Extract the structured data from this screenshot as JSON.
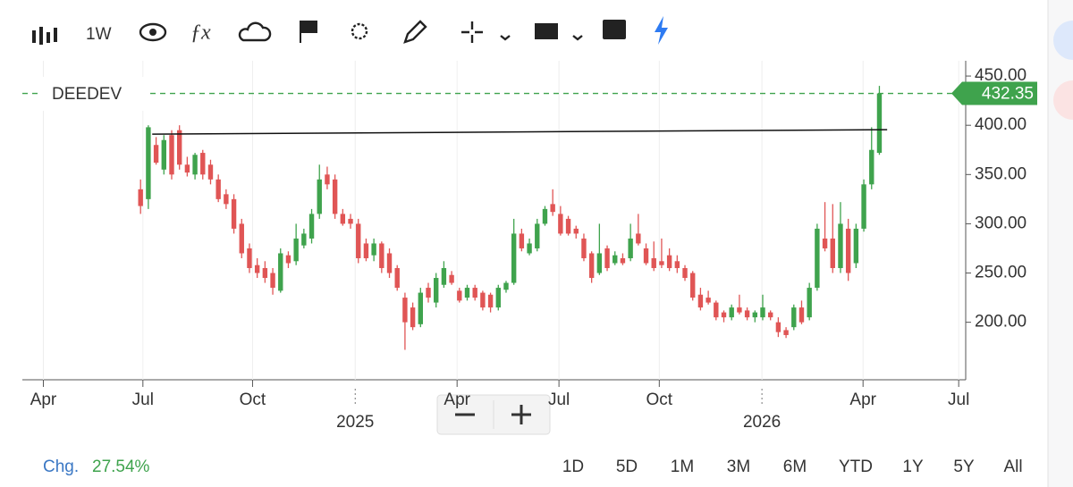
{
  "toolbar": {
    "interval": "1W"
  },
  "change": {
    "label": "Chg.",
    "value": "27.54%"
  },
  "ranges": [
    "1D",
    "5D",
    "1M",
    "3M",
    "6M",
    "YTD",
    "1Y",
    "5Y",
    "All"
  ],
  "chart_data": {
    "type": "candlestick",
    "up_color": "#3fa34d",
    "down_color": "#e05555",
    "x": [
      0,
      1,
      2,
      3,
      4,
      5,
      6,
      7,
      8,
      9,
      10,
      11,
      12,
      13,
      14,
      15,
      16,
      17,
      18,
      19,
      20,
      21,
      22,
      23,
      24,
      25,
      26,
      27,
      28,
      29,
      30,
      31,
      32,
      33,
      34,
      35,
      36,
      37,
      38,
      39,
      40,
      41,
      42,
      43,
      44,
      45,
      46,
      47,
      48,
      49,
      50,
      51,
      52,
      53,
      54,
      55,
      56,
      57,
      58,
      59,
      60,
      61,
      62,
      63,
      64,
      65,
      66,
      67,
      68,
      69,
      70,
      71,
      72,
      73,
      74,
      75,
      76,
      77,
      78,
      79,
      80,
      81,
      82,
      83,
      84,
      85,
      86,
      87,
      88,
      89,
      90,
      91,
      92,
      93,
      94,
      95
    ],
    "series": [
      {
        "name": "DEEDEV",
        "open": [
          335,
          325,
          380,
          355,
          390,
          395,
          360,
          350,
          372,
          360,
          345,
          330,
          325,
          300,
          275,
          258,
          255,
          250,
          232,
          268,
          262,
          278,
          285,
          310,
          350,
          345,
          310,
          305,
          300,
          280,
          268,
          280,
          270,
          255,
          225,
          215,
          198,
          235,
          220,
          238,
          248,
          232,
          225,
          235,
          230,
          228,
          215,
          233,
          240,
          290,
          270,
          275,
          300,
          320,
          310,
          305,
          295,
          285,
          270,
          250,
          275,
          260,
          265,
          265,
          290,
          275,
          265,
          262,
          268,
          262,
          255,
          250,
          228,
          225,
          220,
          210,
          205,
          215,
          212,
          205,
          205,
          210,
          200,
          192,
          195,
          215,
          205,
          235,
          285,
          285,
          255,
          295,
          260,
          295,
          340,
          372
        ],
        "high": [
          345,
          400,
          388,
          390,
          395,
          400,
          368,
          372,
          375,
          365,
          350,
          335,
          330,
          305,
          280,
          265,
          262,
          255,
          275,
          272,
          300,
          295,
          315,
          360,
          358,
          350,
          315,
          310,
          305,
          285,
          285,
          282,
          275,
          258,
          230,
          220,
          235,
          240,
          250,
          262,
          252,
          235,
          238,
          238,
          232,
          230,
          238,
          242,
          305,
          295,
          285,
          305,
          318,
          335,
          318,
          308,
          298,
          290,
          272,
          300,
          278,
          272,
          270,
          300,
          310,
          280,
          282,
          285,
          275,
          268,
          258,
          252,
          235,
          232,
          222,
          212,
          218,
          228,
          215,
          212,
          228,
          212,
          205,
          195,
          218,
          222,
          240,
          300,
          322,
          320,
          322,
          305,
          300,
          345,
          398,
          440
        ],
        "low": [
          310,
          315,
          360,
          350,
          345,
          355,
          348,
          345,
          345,
          340,
          322,
          315,
          290,
          265,
          250,
          245,
          240,
          228,
          230,
          255,
          258,
          275,
          280,
          305,
          335,
          305,
          298,
          295,
          260,
          262,
          262,
          250,
          245,
          232,
          172,
          192,
          195,
          220,
          215,
          235,
          238,
          220,
          222,
          222,
          212,
          210,
          212,
          230,
          238,
          272,
          268,
          272,
          298,
          308,
          288,
          288,
          285,
          262,
          240,
          248,
          252,
          258,
          258,
          262,
          278,
          258,
          252,
          255,
          252,
          250,
          242,
          222,
          212,
          218,
          202,
          200,
          202,
          208,
          202,
          200,
          202,
          202,
          185,
          184,
          192,
          198,
          202,
          232,
          272,
          250,
          250,
          242,
          255,
          292,
          335,
          370
        ],
        "close": [
          318,
          398,
          362,
          385,
          350,
          360,
          352,
          370,
          350,
          345,
          325,
          320,
          295,
          270,
          255,
          250,
          245,
          235,
          270,
          260,
          285,
          290,
          310,
          345,
          340,
          310,
          300,
          300,
          265,
          265,
          280,
          255,
          250,
          235,
          200,
          195,
          230,
          225,
          245,
          255,
          240,
          222,
          235,
          225,
          215,
          215,
          235,
          240,
          290,
          275,
          280,
          300,
          315,
          312,
          290,
          290,
          290,
          265,
          245,
          270,
          255,
          268,
          260,
          285,
          280,
          260,
          255,
          258,
          255,
          255,
          245,
          225,
          215,
          220,
          205,
          205,
          215,
          210,
          205,
          210,
          215,
          205,
          190,
          187,
          215,
          200,
          235,
          295,
          275,
          255,
          300,
          250,
          295,
          340,
          375,
          432.35
        ]
      }
    ],
    "price_line": {
      "value": 432.35,
      "color": "#3fa34d"
    },
    "trendline": {
      "x": [
        1.5,
        96
      ],
      "y": [
        391,
        395.5
      ],
      "color": "#111"
    },
    "xlim": [
      -15.2,
      106.1
    ],
    "xticks": [
      {
        "value": -12.5,
        "label": "Apr"
      },
      {
        "value": 0.3,
        "label": "Jul"
      },
      {
        "value": 14.4,
        "label": "Oct"
      },
      {
        "value": 40.7,
        "label": "Apr"
      },
      {
        "value": 53.8,
        "label": "Jul"
      },
      {
        "value": 66.7,
        "label": "Oct"
      },
      {
        "value": 92.9,
        "label": "Apr"
      },
      {
        "value": 105.2,
        "label": "Jul"
      }
    ],
    "year_ticks": [
      {
        "value": 27.6,
        "label": "2025"
      },
      {
        "value": 79.9,
        "label": "2026"
      }
    ],
    "ylim": [
      141.6,
      465.5
    ],
    "yticks": [
      {
        "value": 200,
        "label": "200.00"
      },
      {
        "value": 250,
        "label": "250.00"
      },
      {
        "value": 300,
        "label": "300.00"
      },
      {
        "value": 350,
        "label": "350.00"
      },
      {
        "value": 400,
        "label": "400.00"
      },
      {
        "value": 450,
        "label": "450.00"
      }
    ],
    "grid": true
  }
}
